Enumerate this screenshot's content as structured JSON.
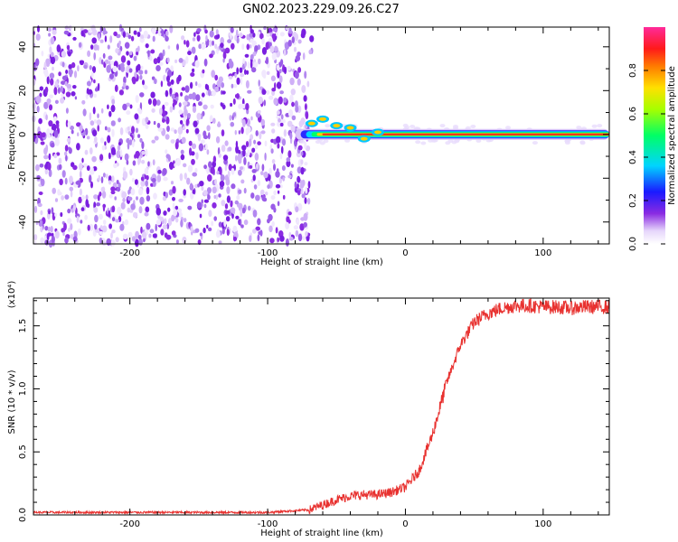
{
  "title": "GN02.2023.229.09.26.C27",
  "colors": {
    "snr_line": "#e8312f",
    "speckle": "#8a2be2",
    "frame": "#000000"
  },
  "chart_data": [
    {
      "type": "heatmap",
      "xlabel": "Height of straight line (km)",
      "ylabel": "Frequency (Hz)",
      "xlim": [
        -270,
        148
      ],
      "ylim": [
        -50,
        49
      ],
      "xticks": [
        -200,
        -100,
        0,
        100
      ],
      "xtick_labels": [
        "-200",
        "-100",
        "0",
        "100"
      ],
      "yticks": [
        -40,
        -20,
        0,
        20,
        40
      ],
      "ytick_labels": [
        "-40",
        "-20",
        "0",
        "20",
        "40"
      ],
      "colorbar": {
        "label": "Normalized spectral amplitude",
        "range": [
          0,
          1
        ],
        "ticks": [
          0,
          0.2,
          0.4,
          0.6,
          0.8
        ],
        "tick_labels": [
          "0.0",
          "0.2",
          "0.4",
          "0.6",
          "0.8"
        ],
        "colormap": "white-purple-blue-cyan-green-yellow-orange-red-magenta"
      },
      "noise_region_x": [
        -270,
        -70
      ],
      "signal_line": {
        "freq_hz": 0,
        "x_range": [
          -80,
          148
        ],
        "peak_amplitude": 0.9
      }
    },
    {
      "type": "line",
      "xlabel": "Height of straight line (km)",
      "ylabel": "SNR (10 * v/v)",
      "y_multiplier_label": "(x10⁴)",
      "xlim": [
        -270,
        148
      ],
      "ylim": [
        0,
        1.72
      ],
      "xticks": [
        -200,
        -100,
        0,
        100
      ],
      "xtick_labels": [
        "-200",
        "-100",
        "0",
        "100"
      ],
      "yticks": [
        0,
        0.5,
        1.0,
        1.5
      ],
      "ytick_labels": [
        "0.0",
        "0.5",
        "1.0",
        "1.5"
      ],
      "series": [
        {
          "x": [
            -270,
            -200,
            -100,
            -70,
            -60,
            -50,
            -40,
            -30,
            -20,
            -10,
            0,
            10,
            20,
            30,
            40,
            50,
            60,
            70,
            80,
            90,
            100,
            110,
            120,
            130,
            140,
            148
          ],
          "y": [
            0.02,
            0.02,
            0.02,
            0.04,
            0.08,
            0.12,
            0.15,
            0.16,
            0.16,
            0.18,
            0.22,
            0.35,
            0.65,
            1.05,
            1.35,
            1.53,
            1.6,
            1.64,
            1.66,
            1.66,
            1.65,
            1.65,
            1.64,
            1.65,
            1.65,
            1.65
          ]
        }
      ]
    }
  ]
}
